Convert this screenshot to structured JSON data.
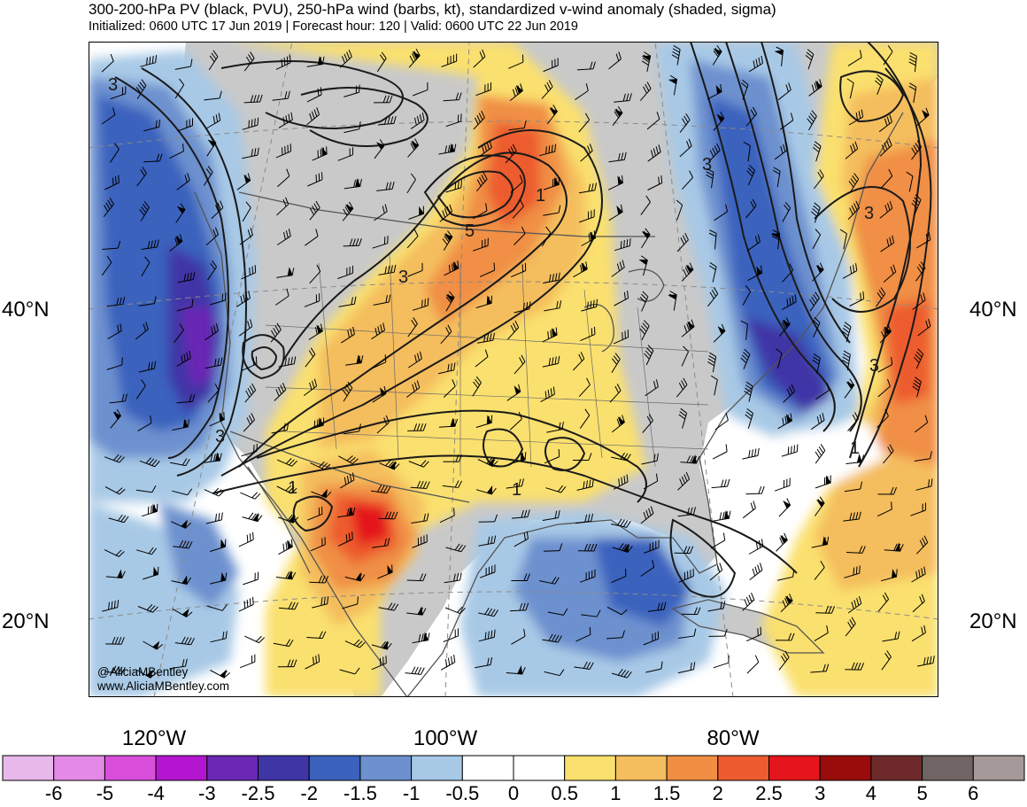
{
  "header": {
    "title": "300-200-hPa PV (black, PVU), 250-hPa wind (barbs, kt), standardized v-wind anomaly (shaded, sigma)",
    "subtitle": "Initialized: 0600 UTC 17 Jun 2019 | Forecast hour: 120 | Valid: 0600 UTC 22 Jun 2019"
  },
  "axes": {
    "lat_labels": [
      "40°N",
      "20°N"
    ],
    "lon_labels": [
      "120°W",
      "100°W",
      "80°W"
    ]
  },
  "contour_labels": [
    "3",
    "3",
    "3",
    "5",
    "1",
    "3",
    "1",
    "1",
    "3",
    "3",
    "1"
  ],
  "credits": {
    "handle": "@AliciaMBentley",
    "website": "www.AliciaMBentley.com"
  },
  "colorbar": {
    "ticks": [
      "-6",
      "-5",
      "-4",
      "-3",
      "-2.5",
      "-2",
      "-1.5",
      "-1",
      "-0.5",
      "0",
      "0.5",
      "1",
      "1.5",
      "2",
      "2.5",
      "3",
      "4",
      "5",
      "6"
    ],
    "colors": [
      "#e9b8ea",
      "#e48ae6",
      "#d94fdc",
      "#b415d0",
      "#6a28b4",
      "#3f36a6",
      "#3b62bd",
      "#6d91cf",
      "#a8c9e6",
      "#ffffff",
      "#ffffff",
      "#fae06e",
      "#f4bd5d",
      "#f08f44",
      "#ed5b2f",
      "#e4151b",
      "#9a0c0c",
      "#6e2a2a",
      "#706464",
      "#a59999"
    ]
  },
  "map": {
    "colors": {
      "land": "#c9c9c9",
      "ocean": "#ffffff",
      "coast": "#555555",
      "pv_contour": "#1a1a1a",
      "barb": "#000000"
    }
  }
}
